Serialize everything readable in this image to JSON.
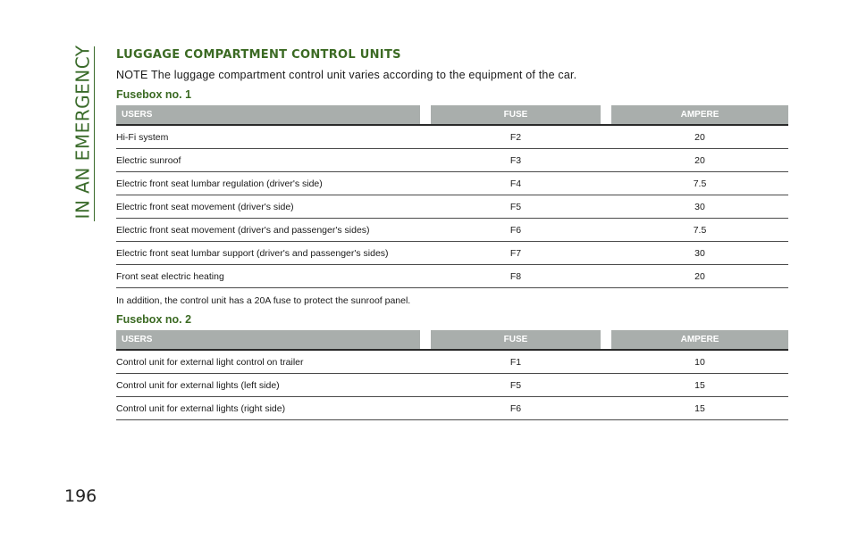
{
  "side_tab": "IN AN EMERGENCY",
  "page_number": "196",
  "section_title": "LUGGAGE COMPARTMENT CONTROL UNITS",
  "note": "NOTE The luggage compartment control unit varies according to the equipment of the car.",
  "fusebox1": {
    "title": "Fusebox no. 1",
    "headers": {
      "users": "USERS",
      "fuse": "FUSE",
      "ampere": "AMPERE"
    },
    "rows": [
      {
        "user": "Hi-Fi system",
        "fuse": "F2",
        "ampere": "20"
      },
      {
        "user": "Electric sunroof",
        "fuse": "F3",
        "ampere": "20"
      },
      {
        "user": "Electric front seat lumbar regulation (driver's side)",
        "fuse": "F4",
        "ampere": "7.5"
      },
      {
        "user": "Electric front seat movement (driver's side)",
        "fuse": "F5",
        "ampere": "30"
      },
      {
        "user": "Electric front seat movement (driver's and passenger's sides)",
        "fuse": "F6",
        "ampere": "7.5"
      },
      {
        "user": "Electric front seat lumbar support (driver's and passenger's sides)",
        "fuse": "F7",
        "ampere": "30"
      },
      {
        "user": "Front seat electric heating",
        "fuse": "F8",
        "ampere": "20"
      }
    ]
  },
  "after_note": "In addition, the control unit has a 20A fuse to protect the sunroof panel.",
  "fusebox2": {
    "title": "Fusebox no. 2",
    "headers": {
      "users": "USERS",
      "fuse": "FUSE",
      "ampere": "AMPERE"
    },
    "rows": [
      {
        "user": "Control unit for external light control on trailer",
        "fuse": "F1",
        "ampere": "10"
      },
      {
        "user": "Control unit for external lights (left side)",
        "fuse": "F5",
        "ampere": "15"
      },
      {
        "user": "Control unit for external lights (right side)",
        "fuse": "F6",
        "ampere": "15"
      }
    ]
  },
  "colors": {
    "accent_green": "#3b6a23",
    "header_gray": "#a9aeac"
  }
}
